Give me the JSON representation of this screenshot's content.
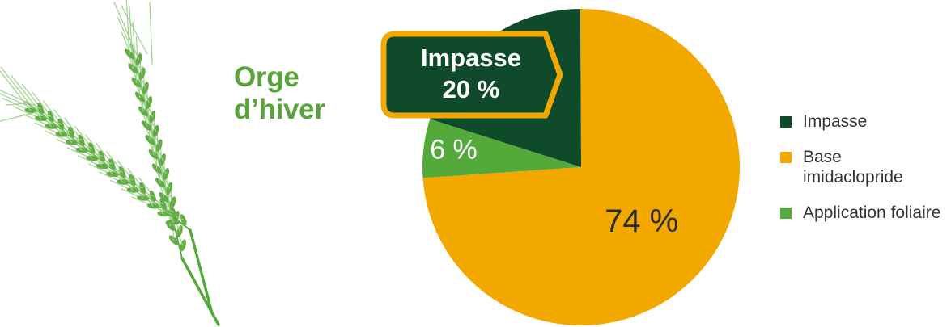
{
  "title": {
    "line1": "Orge",
    "line2": "d’hiver"
  },
  "icons": {
    "illustration": "wheat-ears-icon"
  },
  "colors": {
    "impasse": "#0f4a2b",
    "base_imidaclopride": "#f3a800",
    "application_foliaire": "#53aa3a",
    "callout_border": "#f3a800",
    "title": "#5aa33b"
  },
  "chart_data": {
    "type": "pie",
    "title": "",
    "slices": [
      {
        "label": "Impasse",
        "value": 20,
        "display": "20 %"
      },
      {
        "label": "Base imidaclopride",
        "value": 74,
        "display": "74 %"
      },
      {
        "label": "Application foliaire",
        "value": 6,
        "display": "6 %"
      }
    ],
    "legend": {
      "placement": "right",
      "entries": [
        {
          "key": "impasse",
          "label": "Impasse"
        },
        {
          "key": "base_imidaclopride",
          "label": "Base imidaclopride"
        },
        {
          "key": "application_foliaire",
          "label": "Application foliaire"
        }
      ]
    },
    "callout": {
      "label": "Impasse",
      "value": "20 %"
    }
  }
}
